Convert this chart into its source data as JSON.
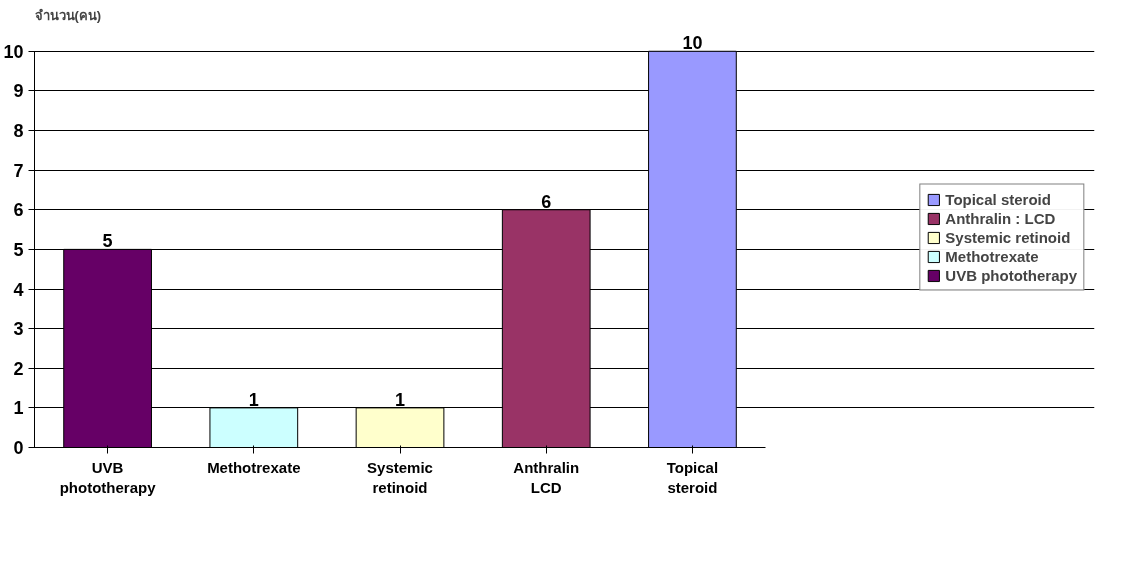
{
  "chart_data": {
    "type": "bar",
    "ylabel": "จำนวน(คน)",
    "categories": [
      "UVB\nphototherapy",
      "Methotrexate",
      "Systemic\nretinoid",
      "Anthralin\nLCD",
      "Topical\nsteroid"
    ],
    "series": [
      {
        "name": "UVB phototherapy",
        "color": "#660066",
        "values": [
          5,
          null,
          null,
          null,
          null
        ]
      },
      {
        "name": "Methotrexate",
        "color": "#ccffff",
        "values": [
          null,
          1,
          null,
          null,
          null
        ]
      },
      {
        "name": "Systemic retinoid",
        "color": "#ffffcc",
        "values": [
          null,
          null,
          1,
          null,
          null
        ]
      },
      {
        "name": "Anthralin : LCD",
        "color": "#993366",
        "values": [
          null,
          null,
          null,
          6,
          null
        ]
      },
      {
        "name": "Topical steroid",
        "color": "#9999ff",
        "values": [
          null,
          null,
          null,
          null,
          10
        ]
      }
    ],
    "ylim": [
      0,
      10
    ],
    "yticks": [
      0,
      1,
      2,
      3,
      4,
      5,
      6,
      7,
      8,
      9,
      10
    ],
    "grid": "y",
    "legend": "right",
    "data_labels": true
  }
}
